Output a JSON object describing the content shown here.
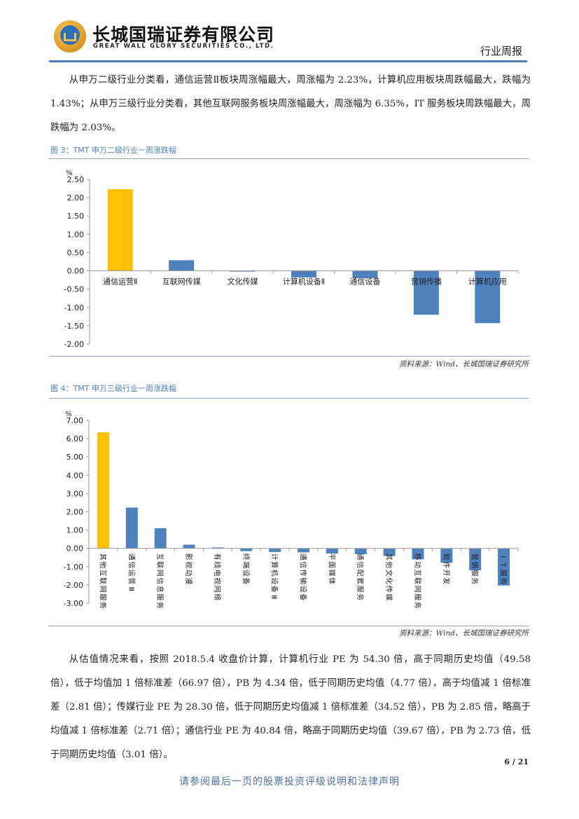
{
  "header": {
    "company_cn": "长城国瑞证券有限公司",
    "company_en": "GREAT WALL GLORY SECURITIES CO., LTD.",
    "report_type": "行业周报",
    "logo_icon": "great-wall-logo-icon"
  },
  "paragraph1": "从申万二级行业分类看，通信运营Ⅱ板块周涨幅最大，周涨幅为 2.23%，计算机应用板块周跌幅最大，跌幅为 1.43%；从申万三级行业分类看，其他互联网服务板块周涨幅最大，周涨幅为 6.35%，IT 服务板块周跌幅最大，周跌幅为 2.03%。",
  "figure3": {
    "title": "图 3：TMT 申万二级行业一周涨跌幅",
    "source": "资料来源：Wind、长城国瑞证券研究所"
  },
  "figure4": {
    "title": "图 4：TMT 申万三级行业一周涨跌幅",
    "source": "资料来源：Wind、长城国瑞证券研究所"
  },
  "paragraph2": "从估值情况来看，按照 2018.5.4 收盘价计算，计算机行业 PE 为 54.30 倍，高于同期历史均值（49.58 倍），低于均值加 1 倍标准差（66.97 倍），PB 为 4.34 倍，低于同期历史均值（4.77 倍），高于均值减 1 倍标准差（2.81 倍）；传媒行业 PE 为 28.30 倍，低于同期历史均值减 1 倍标准差（34.52 倍），PB 为 2.85 倍，略高于均值减 1 倍标准差（2.71 倍）；通信行业 PE 为 40.84 倍，略高于同期历史均值（39.67 倍），PB 为 2.73 倍，低于同期历史均值（3.01 倍）。",
  "page_number": "6 / 21",
  "footer": "请参阅最后一页的股票投资评级说明和法律声明",
  "colors": {
    "highlight_bar": "#ffc000",
    "normal_bar": "#4f81bd",
    "caption": "#4f81bd",
    "rule": "#4f81bd"
  },
  "chart_data": [
    {
      "type": "bar",
      "title": "TMT 申万二级行业一周涨跌幅",
      "ylabel": "%",
      "ylim": [
        -2.0,
        2.5
      ],
      "yticks": [
        "2.50",
        "2.00",
        "1.50",
        "1.00",
        "0.50",
        "0.00",
        "-0.50",
        "-1.00",
        "-1.50",
        "-2.00"
      ],
      "categories": [
        "通信运营Ⅱ",
        "互联网传媒",
        "文化传媒",
        "计算机设备Ⅱ",
        "通信设备",
        "营销传播",
        "计算机应用"
      ],
      "values": [
        2.23,
        0.29,
        -0.02,
        -0.18,
        -0.2,
        -1.2,
        -1.43
      ],
      "highlight_index": 0,
      "grid": false
    },
    {
      "type": "bar",
      "title": "TMT 申万三级行业一周涨跌幅",
      "ylabel": "%",
      "ylim": [
        -3.0,
        7.0
      ],
      "yticks": [
        "7.00",
        "6.00",
        "5.00",
        "4.00",
        "3.00",
        "2.00",
        "1.00",
        "0.00",
        "-1.00",
        "-2.00",
        "-3.00"
      ],
      "categories": [
        "其他互联网服务",
        "通信运营Ⅲ",
        "互联网信息服务",
        "影视动漫",
        "有线电视网络",
        "终端设备",
        "计算机设备Ⅲ",
        "通信传输设备",
        "平面媒体",
        "通信配套服务",
        "其他文化传媒",
        "移动互联网服务",
        "软件开发",
        "营销服务",
        "IT服务"
      ],
      "values": [
        6.35,
        2.23,
        1.1,
        0.2,
        0.05,
        -0.15,
        -0.2,
        -0.22,
        -0.28,
        -0.32,
        -0.42,
        -0.6,
        -0.78,
        -1.2,
        -2.03
      ],
      "highlight_index": 0,
      "grid": false
    }
  ]
}
